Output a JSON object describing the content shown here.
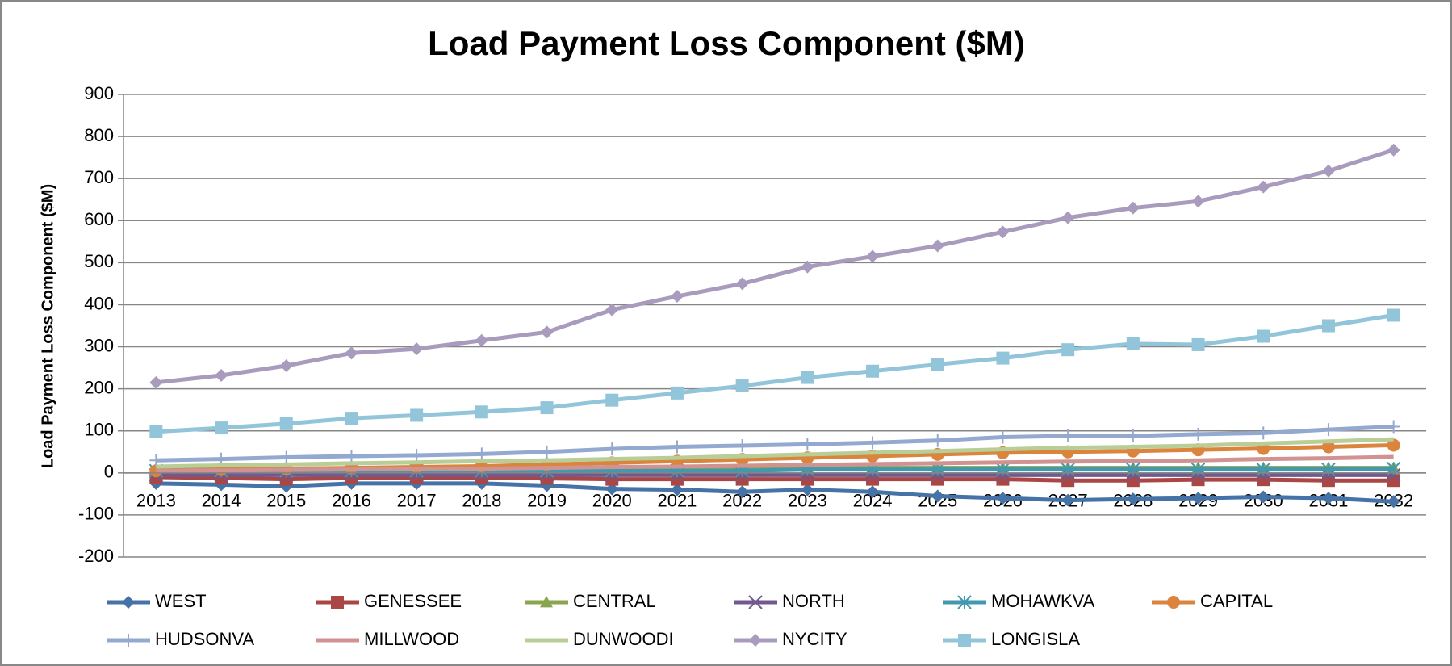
{
  "chart_data": {
    "type": "line",
    "title": "Load Payment Loss Component ($M)",
    "ylabel": "Load Payment Loss Component ($M)",
    "categories": [
      "2013",
      "2014",
      "2015",
      "2016",
      "2017",
      "2018",
      "2019",
      "2020",
      "2021",
      "2022",
      "2023",
      "2024",
      "2025",
      "2026",
      "2027",
      "2028",
      "2029",
      "2030",
      "2031",
      "2032"
    ],
    "ylim": [
      -200,
      900
    ],
    "yticks": [
      -200,
      -100,
      0,
      100,
      200,
      300,
      400,
      500,
      600,
      700,
      800,
      900
    ],
    "grid": true,
    "legend": "bottom",
    "series": [
      {
        "name": "WEST",
        "color": "#4572a7",
        "marker": "diamond",
        "values": [
          -25,
          -28,
          -32,
          -25,
          -25,
          -25,
          -30,
          -38,
          -40,
          -45,
          -40,
          -45,
          -55,
          -60,
          -65,
          -62,
          -60,
          -57,
          -60,
          -68
        ]
      },
      {
        "name": "GENESSEE",
        "color": "#aa4643",
        "marker": "square",
        "values": [
          -10,
          -12,
          -15,
          -12,
          -12,
          -12,
          -13,
          -15,
          -15,
          -15,
          -15,
          -15,
          -15,
          -15,
          -18,
          -18,
          -16,
          -16,
          -18,
          -18
        ]
      },
      {
        "name": "CENTRAL",
        "color": "#89a54e",
        "marker": "triangle",
        "values": [
          10,
          10,
          10,
          10,
          11,
          11,
          11,
          12,
          12,
          12,
          12,
          12,
          12,
          12,
          12,
          12,
          12,
          12,
          12,
          12
        ]
      },
      {
        "name": "NORTH",
        "color": "#71588f",
        "marker": "x",
        "values": [
          -5,
          -5,
          -5,
          -5,
          -5,
          -5,
          -5,
          -5,
          -5,
          -5,
          -5,
          -5,
          -5,
          -5,
          -5,
          -5,
          -5,
          -5,
          -5,
          -5
        ]
      },
      {
        "name": "MOHAWKVA",
        "color": "#4198af",
        "marker": "star",
        "values": [
          5,
          5,
          5,
          5,
          5,
          5,
          5,
          5,
          5,
          5,
          8,
          8,
          8,
          8,
          8,
          8,
          8,
          8,
          8,
          10
        ]
      },
      {
        "name": "CAPITAL",
        "color": "#db843d",
        "marker": "circle",
        "values": [
          5,
          8,
          10,
          12,
          14,
          16,
          20,
          24,
          28,
          32,
          36,
          40,
          44,
          48,
          50,
          52,
          55,
          58,
          62,
          66
        ]
      },
      {
        "name": "HUDSONVA",
        "color": "#93a9cf",
        "marker": "plus",
        "values": [
          30,
          33,
          37,
          40,
          42,
          45,
          50,
          57,
          62,
          65,
          68,
          72,
          77,
          85,
          88,
          88,
          92,
          95,
          103,
          110
        ]
      },
      {
        "name": "MILLWOOD",
        "color": "#d19392",
        "marker": "none",
        "values": [
          5,
          6,
          7,
          8,
          9,
          10,
          12,
          14,
          15,
          17,
          19,
          21,
          23,
          25,
          27,
          28,
          30,
          33,
          35,
          38
        ]
      },
      {
        "name": "DUNWOODI",
        "color": "#b9cd96",
        "marker": "none",
        "values": [
          15,
          18,
          20,
          23,
          25,
          28,
          30,
          33,
          36,
          40,
          44,
          48,
          52,
          56,
          60,
          62,
          65,
          70,
          75,
          80
        ]
      },
      {
        "name": "NYCITY",
        "color": "#a99bbd",
        "marker": "diamond",
        "values": [
          215,
          232,
          255,
          285,
          295,
          315,
          335,
          388,
          420,
          450,
          490,
          515,
          540,
          573,
          607,
          630,
          646,
          680,
          718,
          768
        ]
      },
      {
        "name": "LONGISLA",
        "color": "#92c5d9",
        "marker": "square",
        "values": [
          98,
          107,
          117,
          130,
          137,
          145,
          155,
          173,
          190,
          207,
          227,
          242,
          258,
          273,
          293,
          307,
          305,
          325,
          350,
          375
        ]
      }
    ]
  }
}
